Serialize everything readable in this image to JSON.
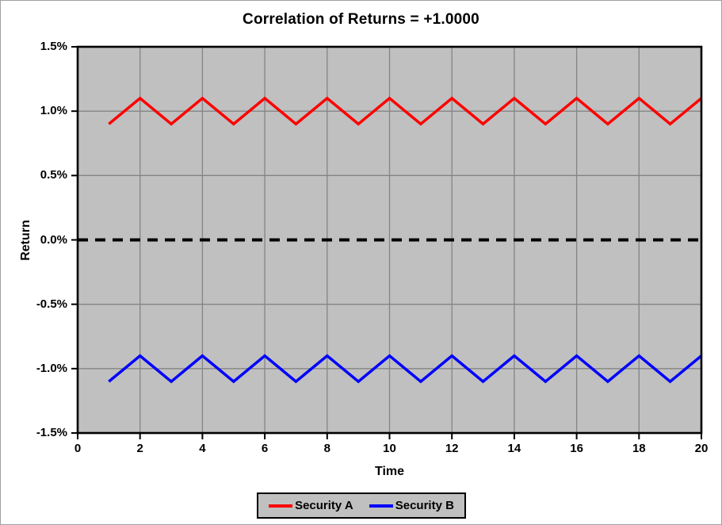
{
  "window": {
    "background": "#ffffff",
    "frame_border_color": "#a0a0a0"
  },
  "chart_data": {
    "type": "line",
    "title": "Correlation of Returns = +1.0000",
    "xlabel": "Time",
    "ylabel": "Return",
    "units": "percent",
    "xlim": [
      0,
      20
    ],
    "ylim": [
      -1.5,
      1.5
    ],
    "grid": true,
    "plot_background": "#c0c0c0",
    "gridline_color": "#848484",
    "axis_color": "#000000",
    "x_ticks": {
      "values": [
        0,
        2,
        4,
        6,
        8,
        10,
        12,
        14,
        16,
        18,
        20
      ],
      "labels": [
        "0",
        "2",
        "4",
        "6",
        "8",
        "10",
        "12",
        "14",
        "16",
        "18",
        "20"
      ]
    },
    "y_ticks": {
      "values": [
        1.5,
        1.0,
        0.5,
        0.0,
        -0.5,
        -1.0,
        -1.5
      ],
      "labels": [
        "1.5%",
        "1.0%",
        "0.5%",
        "0.0%",
        "-0.5%",
        "-1.0%",
        "-1.5%"
      ]
    },
    "x": [
      1,
      2,
      3,
      4,
      5,
      6,
      7,
      8,
      9,
      10,
      11,
      12,
      13,
      14,
      15,
      16,
      17,
      18,
      19,
      20
    ],
    "series": [
      {
        "name": "Security A",
        "color": "#ff0000",
        "values": [
          0.9,
          1.1,
          0.9,
          1.1,
          0.9,
          1.1,
          0.9,
          1.1,
          0.9,
          1.1,
          0.9,
          1.1,
          0.9,
          1.1,
          0.9,
          1.1,
          0.9,
          1.1,
          0.9,
          1.1
        ]
      },
      {
        "name": "Security B",
        "color": "#0000ff",
        "values": [
          -1.1,
          -0.9,
          -1.1,
          -0.9,
          -1.1,
          -0.9,
          -1.1,
          -0.9,
          -1.1,
          -0.9,
          -1.1,
          -0.9,
          -1.1,
          -0.9,
          -1.1,
          -0.9,
          -1.1,
          -0.9,
          -1.1,
          -0.9
        ]
      }
    ],
    "reference_line": {
      "y": 0.0,
      "color": "#000000",
      "style": "dashed"
    },
    "legend": {
      "position": "bottom",
      "background": "#c0c0c0",
      "border_color": "#000000",
      "entries": [
        "Security A",
        "Security B"
      ]
    }
  }
}
